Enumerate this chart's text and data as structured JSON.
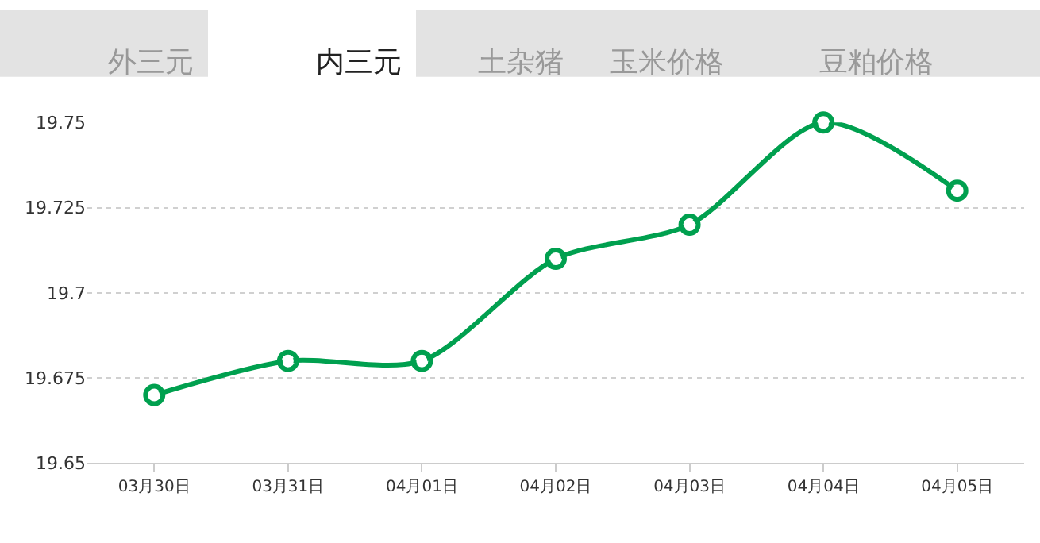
{
  "chart_data": {
    "type": "line",
    "categories": [
      "03月30日",
      "03月31日",
      "04月01日",
      "04月02日",
      "04月03日",
      "04月04日",
      "04月05日"
    ],
    "series": [
      {
        "color": "#00a04f",
        "values": [
          19.67,
          19.68,
          19.68,
          19.71,
          19.72,
          19.75,
          19.73
        ]
      }
    ],
    "ylim": [
      19.65,
      19.75
    ],
    "yticks": [
      19.65,
      19.675,
      19.7,
      19.725,
      19.75
    ],
    "grid": "y",
    "marker": "circle",
    "line_style": "solid",
    "legend": false,
    "annotations": [
      "外三元",
      "内三元",
      "土杂猪",
      "玉米价格",
      "豆粕价格"
    ]
  }
}
